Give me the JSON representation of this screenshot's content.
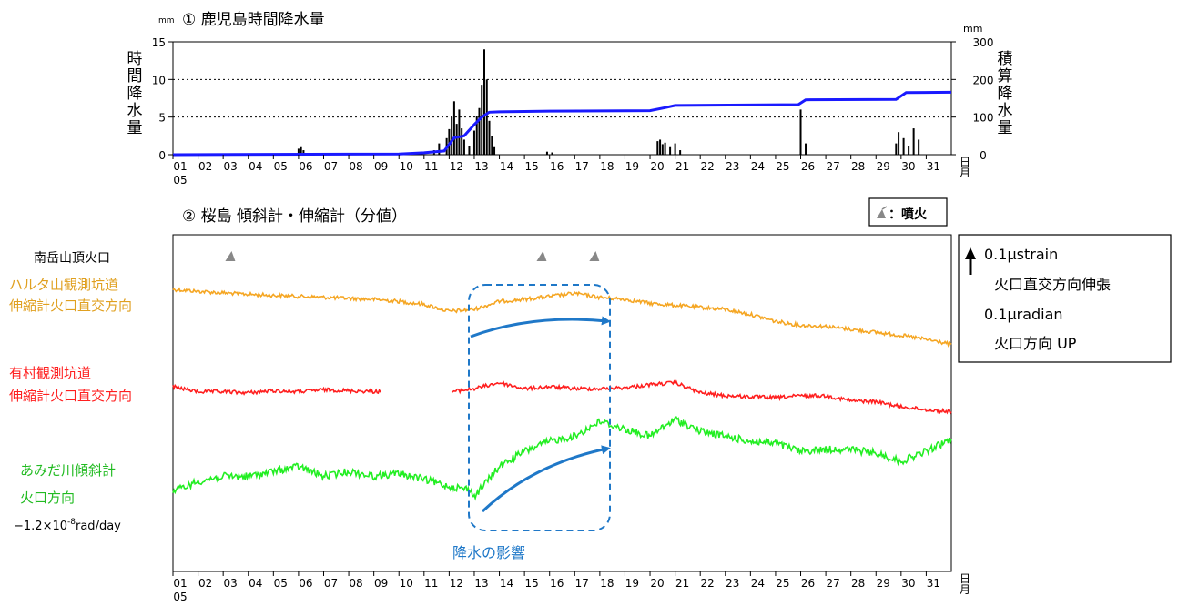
{
  "panel1": {
    "title": "① 鹿児島時間降水量",
    "y_unit_left": "mm",
    "y_unit_right": "mm",
    "ylabel_left": "時間降水量",
    "ylabel_right": "積算降水量",
    "yticks_left": [
      "0",
      "5",
      "10",
      "15"
    ],
    "yticks_right": [
      "0",
      "100",
      "200",
      "300"
    ]
  },
  "panel2": {
    "title": "② 桜島 傾斜計・伸縮計（分値）",
    "legend_eruption": "：噴火",
    "eruption_row_label": "南岳山頂火口",
    "annotation": "降水の影響",
    "series_labels": {
      "harutayama": [
        "ハルタ山観測坑道",
        "伸縮計火口直交方向"
      ],
      "arimura": [
        "有村観測坑道",
        "伸縮計火口直交方向"
      ],
      "amidagawa": [
        "あみだ川傾斜計",
        "火口方向"
      ],
      "amidagawa_trend": "−1.2×10",
      "amidagawa_trend_exp": "-8",
      "amidagawa_trend_unit": "rad/day"
    },
    "scale_box": [
      "0.1μstrain",
      "火口直交方向伸張",
      "0.1μradian",
      "火口方向 UP"
    ]
  },
  "x_axis": {
    "ticks": [
      "01",
      "02",
      "03",
      "04",
      "05",
      "06",
      "07",
      "08",
      "09",
      "10",
      "11",
      "12",
      "13",
      "14",
      "15",
      "16",
      "17",
      "18",
      "19",
      "20",
      "21",
      "22",
      "23",
      "24",
      "25",
      "26",
      "27",
      "28",
      "29",
      "30",
      "31"
    ],
    "month_label": "05",
    "unit": [
      "日",
      "月"
    ]
  },
  "chart_data": [
    {
      "type": "bar",
      "title": "① 鹿児島時間降水量",
      "xlabel": "",
      "ylabel": "時間降水量",
      "xlim": [
        1,
        32
      ],
      "ylim": [
        0,
        15
      ],
      "grid": "dotted horizontal at 5 and 10",
      "series": [
        {
          "x": [
            6.0,
            6.1,
            6.2,
            11.4,
            11.6,
            11.9,
            12.0,
            12.1,
            12.2,
            12.3,
            12.4,
            12.5,
            12.6,
            12.8,
            13.0,
            13.1,
            13.2,
            13.3,
            13.4,
            13.5,
            13.6,
            13.7,
            13.8,
            15.9,
            16.1,
            20.3,
            20.4,
            20.5,
            20.6,
            20.8,
            21.0,
            21.2,
            26.0,
            26.2,
            29.8,
            29.9,
            30.1,
            30.3,
            30.5,
            30.7
          ],
          "values": [
            0.8,
            1.0,
            0.6,
            0.6,
            1.5,
            2.2,
            3.4,
            5.0,
            7.1,
            4.1,
            6.0,
            3.5,
            2.0,
            1.2,
            3.2,
            5.1,
            6.2,
            9.3,
            14.0,
            10.0,
            4.5,
            2.5,
            1.0,
            0.4,
            0.3,
            1.8,
            2.0,
            1.4,
            1.6,
            1.0,
            1.5,
            0.6,
            6.0,
            1.5,
            1.5,
            3.0,
            2.2,
            1.2,
            3.5,
            2.0
          ]
        }
      ]
    },
    {
      "type": "line",
      "title": "",
      "ylabel": "積算降水量",
      "ylim": [
        0,
        300
      ],
      "x": [
        1,
        10,
        11,
        11.8,
        12.2,
        12.6,
        13.0,
        13.3,
        13.6,
        14.0,
        16.0,
        20.0,
        20.6,
        21.0,
        25.9,
        26.2,
        29.8,
        30.2,
        32.0
      ],
      "values": [
        0,
        2,
        5,
        10,
        45,
        50,
        80,
        100,
        113,
        114,
        116,
        117,
        125,
        131,
        133,
        146,
        147,
        165,
        166
      ]
    },
    {
      "type": "line",
      "title": "② 桜島 傾斜計・伸縮計（分値）",
      "xlim": [
        1,
        32
      ],
      "series": [
        {
          "name": "ハルタ山観測坑道 伸縮計火口直交方向",
          "color": "#f5a623",
          "x": [
            1,
            2,
            3,
            4,
            5,
            6,
            7,
            8,
            9,
            10,
            11,
            12,
            13,
            14,
            15,
            16,
            17,
            18,
            19,
            20,
            21,
            22,
            23,
            24,
            25,
            26,
            27,
            28,
            29,
            30,
            31,
            32
          ],
          "values": [
            0.0,
            -0.02,
            -0.035,
            -0.05,
            -0.06,
            -0.07,
            -0.08,
            -0.09,
            -0.1,
            -0.12,
            -0.15,
            -0.22,
            -0.2,
            -0.12,
            -0.1,
            -0.07,
            -0.04,
            -0.08,
            -0.1,
            -0.14,
            -0.16,
            -0.18,
            -0.2,
            -0.25,
            -0.32,
            -0.36,
            -0.37,
            -0.4,
            -0.43,
            -0.46,
            -0.5,
            -0.55
          ]
        },
        {
          "name": "有村観測坑道 伸縮計火口直交方向",
          "color": "#ff1f1f",
          "x": [
            1,
            2,
            3,
            4,
            5,
            6,
            7,
            8,
            9.3,
            null,
            12.1,
            13,
            14,
            15,
            16,
            17,
            18,
            19,
            20,
            21,
            22,
            23,
            24,
            25,
            26,
            27,
            28,
            29,
            30,
            31,
            32
          ],
          "values": [
            0.0,
            -0.05,
            -0.05,
            -0.06,
            -0.04,
            -0.05,
            -0.03,
            -0.04,
            -0.05,
            null,
            -0.05,
            -0.02,
            0.04,
            -0.02,
            0.0,
            -0.02,
            -0.02,
            -0.01,
            0.02,
            0.04,
            -0.06,
            -0.09,
            -0.1,
            -0.11,
            -0.09,
            -0.09,
            -0.14,
            -0.15,
            -0.2,
            -0.23,
            -0.25
          ]
        },
        {
          "name": "あみだ川傾斜計 火口方向",
          "color": "#22ee22",
          "x": [
            1,
            2,
            3,
            4,
            5,
            6,
            7,
            8,
            9,
            10,
            11,
            12,
            12.8,
            13,
            14,
            15,
            16,
            17,
            18,
            19,
            20,
            21,
            22,
            23,
            24,
            25,
            26,
            27,
            28,
            29,
            30,
            31,
            32
          ],
          "values": [
            0.0,
            0.1,
            0.15,
            0.15,
            0.2,
            0.25,
            0.15,
            0.2,
            0.15,
            0.18,
            0.12,
            0.05,
            0.02,
            -0.05,
            0.25,
            0.4,
            0.5,
            0.55,
            0.7,
            0.62,
            0.55,
            0.72,
            0.6,
            0.55,
            0.5,
            0.48,
            0.4,
            0.42,
            0.42,
            0.38,
            0.3,
            0.4,
            0.52
          ]
        }
      ],
      "eruptions_x": [
        3.3,
        15.7,
        17.8
      ]
    }
  ]
}
